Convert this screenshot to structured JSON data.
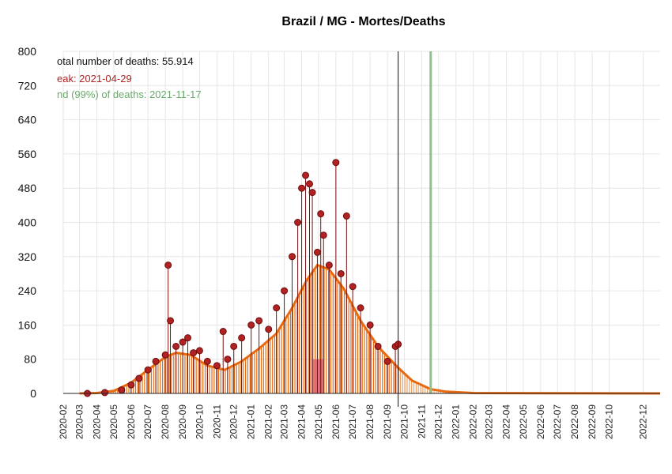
{
  "chart_data": {
    "type": "line",
    "title": "Brazil / MG - Mortes/Deaths",
    "xlabel": "",
    "ylabel": "",
    "ylim": [
      0,
      800
    ],
    "y_ticks": [
      0,
      80,
      160,
      240,
      320,
      400,
      480,
      560,
      640,
      720,
      800
    ],
    "x_ticks": [
      "2020-02",
      "2020-03",
      "2020-04",
      "2020-05",
      "2020-06",
      "2020-07",
      "2020-08",
      "2020-09",
      "2020-10",
      "2020-11",
      "2020-12",
      "2021-01",
      "2021-02",
      "2021-03",
      "2021-04",
      "2021-05",
      "2021-06",
      "2021-07",
      "2021-08",
      "2021-09",
      "2021-10",
      "2021-11",
      "2021-12",
      "2022-01",
      "2022-02",
      "2022-03",
      "2022-04",
      "2022-05",
      "2022-06",
      "2022-07",
      "2022-08",
      "2022-09",
      "2022-10",
      "2022-12"
    ],
    "grid": true,
    "last_data_date": "2021-09-20",
    "forecast_end_date": "2022-12-31",
    "series": [
      {
        "kind": "daily_deaths_points",
        "color": "#b22222",
        "points": [
          [
            "2020-03-15",
            0
          ],
          [
            "2020-04-15",
            2
          ],
          [
            "2020-05-15",
            8
          ],
          [
            "2020-06-01",
            20
          ],
          [
            "2020-06-15",
            35
          ],
          [
            "2020-07-01",
            55
          ],
          [
            "2020-07-15",
            75
          ],
          [
            "2020-08-01",
            90
          ],
          [
            "2020-08-06",
            300
          ],
          [
            "2020-08-10",
            170
          ],
          [
            "2020-08-20",
            110
          ],
          [
            "2020-09-01",
            120
          ],
          [
            "2020-09-10",
            130
          ],
          [
            "2020-09-20",
            95
          ],
          [
            "2020-10-01",
            100
          ],
          [
            "2020-10-15",
            75
          ],
          [
            "2020-11-01",
            65
          ],
          [
            "2020-11-12",
            145
          ],
          [
            "2020-11-20",
            80
          ],
          [
            "2020-12-01",
            110
          ],
          [
            "2020-12-15",
            130
          ],
          [
            "2021-01-01",
            160
          ],
          [
            "2021-01-15",
            170
          ],
          [
            "2021-02-01",
            150
          ],
          [
            "2021-02-15",
            200
          ],
          [
            "2021-03-01",
            240
          ],
          [
            "2021-03-15",
            320
          ],
          [
            "2021-03-25",
            400
          ],
          [
            "2021-04-01",
            480
          ],
          [
            "2021-04-08",
            510
          ],
          [
            "2021-04-15",
            490
          ],
          [
            "2021-04-20",
            470
          ],
          [
            "2021-04-29",
            330
          ],
          [
            "2021-05-05",
            420
          ],
          [
            "2021-05-10",
            370
          ],
          [
            "2021-05-20",
            300
          ],
          [
            "2021-06-01",
            540
          ],
          [
            "2021-06-10",
            280
          ],
          [
            "2021-06-20",
            415
          ],
          [
            "2021-07-01",
            250
          ],
          [
            "2021-07-15",
            200
          ],
          [
            "2021-08-01",
            160
          ],
          [
            "2021-08-15",
            110
          ],
          [
            "2021-09-01",
            75
          ],
          [
            "2021-09-15",
            110
          ],
          [
            "2021-09-20",
            115
          ]
        ]
      },
      {
        "kind": "smoothed_and_forecast_curve",
        "color": "#e86a10",
        "points": [
          [
            "2020-03-01",
            0
          ],
          [
            "2020-04-01",
            1
          ],
          [
            "2020-05-01",
            6
          ],
          [
            "2020-06-01",
            25
          ],
          [
            "2020-07-01",
            55
          ],
          [
            "2020-08-01",
            85
          ],
          [
            "2020-08-20",
            95
          ],
          [
            "2020-09-15",
            90
          ],
          [
            "2020-10-15",
            65
          ],
          [
            "2020-11-15",
            55
          ],
          [
            "2020-12-15",
            75
          ],
          [
            "2021-01-15",
            105
          ],
          [
            "2021-02-15",
            140
          ],
          [
            "2021-03-15",
            200
          ],
          [
            "2021-04-10",
            265
          ],
          [
            "2021-04-29",
            300
          ],
          [
            "2021-05-20",
            290
          ],
          [
            "2021-06-15",
            245
          ],
          [
            "2021-07-15",
            170
          ],
          [
            "2021-08-15",
            110
          ],
          [
            "2021-09-20",
            60
          ],
          [
            "2021-10-15",
            30
          ],
          [
            "2021-11-17",
            10
          ],
          [
            "2021-12-15",
            4
          ],
          [
            "2022-02-01",
            1
          ],
          [
            "2022-12-31",
            0
          ]
        ]
      }
    ],
    "annotations": {
      "total": "otal number of deaths: 55.914",
      "peak": "eak: 2021-04-29",
      "end": "nd (99%) of deaths: 2021-11-17",
      "colors": {
        "total": "#111111",
        "peak": "#b22222",
        "end": "#6aaa6a"
      }
    },
    "peak_bar": {
      "date": "2021-04-29",
      "value": 80,
      "color": "#d9606e"
    },
    "end_line": {
      "date": "2021-11-17",
      "color": "#8fc08f"
    }
  }
}
